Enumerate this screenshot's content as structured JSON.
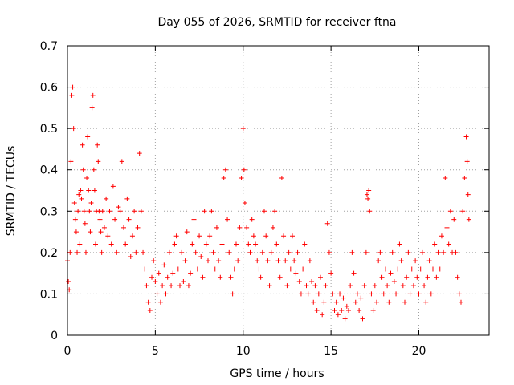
{
  "chart_data": {
    "type": "scatter",
    "title": "Day 055 of 2026, SRMTID for receiver ftna",
    "xlabel": "GPS time / hours",
    "ylabel": "SRMTID / TECUs",
    "xlim": [
      0,
      24
    ],
    "ylim": [
      0,
      0.7
    ],
    "x_ticks": [
      0,
      5,
      10,
      15,
      20
    ],
    "x_tick_labels": [
      "0",
      "5",
      "10",
      "15",
      "20"
    ],
    "y_ticks": [
      0,
      0.1,
      0.2,
      0.3,
      0.4,
      0.5,
      0.6,
      0.7
    ],
    "y_tick_labels": [
      "0",
      "0.1",
      "0.2",
      "0.3",
      "0.4",
      "0.5",
      "0.6",
      "0.7"
    ],
    "grid": true,
    "marker": "+",
    "series": [
      {
        "name": "SRMTID",
        "color": "#ff0000",
        "points": [
          [
            0.0,
            0.18
          ],
          [
            0.05,
            0.13
          ],
          [
            0.1,
            0.11
          ],
          [
            0.15,
            0.2
          ],
          [
            0.2,
            0.42
          ],
          [
            0.25,
            0.58
          ],
          [
            0.3,
            0.6
          ],
          [
            0.35,
            0.5
          ],
          [
            0.4,
            0.32
          ],
          [
            0.45,
            0.28
          ],
          [
            0.5,
            0.25
          ],
          [
            0.55,
            0.2
          ],
          [
            0.6,
            0.3
          ],
          [
            0.65,
            0.34
          ],
          [
            0.7,
            0.22
          ],
          [
            0.75,
            0.35
          ],
          [
            0.8,
            0.33
          ],
          [
            0.85,
            0.46
          ],
          [
            0.9,
            0.4
          ],
          [
            0.95,
            0.3
          ],
          [
            1.0,
            0.27
          ],
          [
            1.05,
            0.2
          ],
          [
            1.1,
            0.38
          ],
          [
            1.15,
            0.48
          ],
          [
            1.2,
            0.35
          ],
          [
            1.25,
            0.3
          ],
          [
            1.3,
            0.25
          ],
          [
            1.35,
            0.32
          ],
          [
            1.4,
            0.55
          ],
          [
            1.45,
            0.58
          ],
          [
            1.5,
            0.4
          ],
          [
            1.55,
            0.35
          ],
          [
            1.6,
            0.22
          ],
          [
            1.65,
            0.3
          ],
          [
            1.7,
            0.46
          ],
          [
            1.75,
            0.42
          ],
          [
            1.8,
            0.3
          ],
          [
            1.85,
            0.28
          ],
          [
            1.9,
            0.25
          ],
          [
            1.95,
            0.2
          ],
          [
            2.0,
            0.3
          ],
          [
            2.1,
            0.26
          ],
          [
            2.2,
            0.33
          ],
          [
            2.3,
            0.24
          ],
          [
            2.4,
            0.3
          ],
          [
            2.5,
            0.22
          ],
          [
            2.6,
            0.36
          ],
          [
            2.7,
            0.28
          ],
          [
            2.8,
            0.2
          ],
          [
            2.9,
            0.31
          ],
          [
            3.0,
            0.3
          ],
          [
            3.1,
            0.42
          ],
          [
            3.2,
            0.26
          ],
          [
            3.3,
            0.22
          ],
          [
            3.4,
            0.33
          ],
          [
            3.5,
            0.28
          ],
          [
            3.6,
            0.19
          ],
          [
            3.7,
            0.24
          ],
          [
            3.8,
            0.3
          ],
          [
            3.9,
            0.2
          ],
          [
            4.0,
            0.26
          ],
          [
            4.1,
            0.44
          ],
          [
            4.2,
            0.3
          ],
          [
            4.3,
            0.2
          ],
          [
            4.4,
            0.16
          ],
          [
            4.5,
            0.12
          ],
          [
            4.6,
            0.08
          ],
          [
            4.7,
            0.06
          ],
          [
            4.8,
            0.14
          ],
          [
            4.9,
            0.18
          ],
          [
            5.0,
            0.13
          ],
          [
            5.1,
            0.1
          ],
          [
            5.2,
            0.15
          ],
          [
            5.3,
            0.08
          ],
          [
            5.4,
            0.12
          ],
          [
            5.5,
            0.17
          ],
          [
            5.6,
            0.1
          ],
          [
            5.7,
            0.14
          ],
          [
            5.8,
            0.2
          ],
          [
            5.9,
            0.12
          ],
          [
            6.0,
            0.15
          ],
          [
            6.1,
            0.22
          ],
          [
            6.2,
            0.24
          ],
          [
            6.3,
            0.16
          ],
          [
            6.4,
            0.12
          ],
          [
            6.5,
            0.2
          ],
          [
            6.6,
            0.13
          ],
          [
            6.7,
            0.18
          ],
          [
            6.8,
            0.25
          ],
          [
            6.9,
            0.12
          ],
          [
            7.0,
            0.15
          ],
          [
            7.1,
            0.22
          ],
          [
            7.2,
            0.28
          ],
          [
            7.3,
            0.2
          ],
          [
            7.4,
            0.16
          ],
          [
            7.5,
            0.24
          ],
          [
            7.6,
            0.19
          ],
          [
            7.7,
            0.14
          ],
          [
            7.8,
            0.3
          ],
          [
            7.9,
            0.22
          ],
          [
            8.0,
            0.18
          ],
          [
            8.1,
            0.24
          ],
          [
            8.2,
            0.3
          ],
          [
            8.3,
            0.2
          ],
          [
            8.4,
            0.16
          ],
          [
            8.5,
            0.26
          ],
          [
            8.6,
            0.18
          ],
          [
            8.7,
            0.14
          ],
          [
            8.8,
            0.22
          ],
          [
            8.9,
            0.38
          ],
          [
            9.0,
            0.4
          ],
          [
            9.1,
            0.28
          ],
          [
            9.2,
            0.2
          ],
          [
            9.3,
            0.14
          ],
          [
            9.4,
            0.1
          ],
          [
            9.5,
            0.16
          ],
          [
            9.6,
            0.22
          ],
          [
            9.7,
            0.18
          ],
          [
            9.8,
            0.26
          ],
          [
            9.9,
            0.38
          ],
          [
            10.0,
            0.5
          ],
          [
            10.05,
            0.4
          ],
          [
            10.1,
            0.32
          ],
          [
            10.2,
            0.26
          ],
          [
            10.3,
            0.22
          ],
          [
            10.4,
            0.2
          ],
          [
            10.5,
            0.28
          ],
          [
            10.6,
            0.24
          ],
          [
            10.7,
            0.22
          ],
          [
            10.8,
            0.18
          ],
          [
            10.9,
            0.16
          ],
          [
            11.0,
            0.14
          ],
          [
            11.1,
            0.2
          ],
          [
            11.2,
            0.3
          ],
          [
            11.3,
            0.24
          ],
          [
            11.4,
            0.18
          ],
          [
            11.5,
            0.12
          ],
          [
            11.6,
            0.2
          ],
          [
            11.7,
            0.26
          ],
          [
            11.8,
            0.3
          ],
          [
            11.9,
            0.22
          ],
          [
            12.0,
            0.18
          ],
          [
            12.1,
            0.14
          ],
          [
            12.2,
            0.38
          ],
          [
            12.3,
            0.24
          ],
          [
            12.4,
            0.18
          ],
          [
            12.5,
            0.12
          ],
          [
            12.6,
            0.2
          ],
          [
            12.7,
            0.16
          ],
          [
            12.8,
            0.24
          ],
          [
            12.9,
            0.18
          ],
          [
            13.0,
            0.15
          ],
          [
            13.1,
            0.2
          ],
          [
            13.2,
            0.13
          ],
          [
            13.3,
            0.1
          ],
          [
            13.4,
            0.16
          ],
          [
            13.5,
            0.22
          ],
          [
            13.6,
            0.12
          ],
          [
            13.7,
            0.1
          ],
          [
            13.8,
            0.18
          ],
          [
            13.9,
            0.13
          ],
          [
            14.0,
            0.08
          ],
          [
            14.1,
            0.12
          ],
          [
            14.2,
            0.06
          ],
          [
            14.3,
            0.1
          ],
          [
            14.4,
            0.14
          ],
          [
            14.5,
            0.05
          ],
          [
            14.6,
            0.08
          ],
          [
            14.7,
            0.12
          ],
          [
            14.8,
            0.27
          ],
          [
            14.9,
            0.2
          ],
          [
            15.0,
            0.15
          ],
          [
            15.1,
            0.1
          ],
          [
            15.2,
            0.06
          ],
          [
            15.3,
            0.08
          ],
          [
            15.4,
            0.05
          ],
          [
            15.5,
            0.1
          ],
          [
            15.6,
            0.06
          ],
          [
            15.7,
            0.09
          ],
          [
            15.8,
            0.04
          ],
          [
            15.9,
            0.07
          ],
          [
            16.0,
            0.06
          ],
          [
            16.1,
            0.12
          ],
          [
            16.2,
            0.2
          ],
          [
            16.3,
            0.15
          ],
          [
            16.4,
            0.08
          ],
          [
            16.5,
            0.1
          ],
          [
            16.6,
            0.06
          ],
          [
            16.7,
            0.09
          ],
          [
            16.8,
            0.04
          ],
          [
            16.9,
            0.12
          ],
          [
            17.0,
            0.2
          ],
          [
            17.05,
            0.34
          ],
          [
            17.1,
            0.33
          ],
          [
            17.15,
            0.35
          ],
          [
            17.2,
            0.3
          ],
          [
            17.3,
            0.1
          ],
          [
            17.4,
            0.06
          ],
          [
            17.5,
            0.12
          ],
          [
            17.6,
            0.08
          ],
          [
            17.7,
            0.18
          ],
          [
            17.8,
            0.2
          ],
          [
            17.9,
            0.14
          ],
          [
            18.0,
            0.1
          ],
          [
            18.1,
            0.16
          ],
          [
            18.2,
            0.12
          ],
          [
            18.3,
            0.08
          ],
          [
            18.4,
            0.15
          ],
          [
            18.5,
            0.2
          ],
          [
            18.6,
            0.13
          ],
          [
            18.7,
            0.1
          ],
          [
            18.8,
            0.16
          ],
          [
            18.9,
            0.22
          ],
          [
            19.0,
            0.18
          ],
          [
            19.1,
            0.12
          ],
          [
            19.2,
            0.08
          ],
          [
            19.3,
            0.14
          ],
          [
            19.4,
            0.2
          ],
          [
            19.5,
            0.1
          ],
          [
            19.6,
            0.16
          ],
          [
            19.7,
            0.12
          ],
          [
            19.8,
            0.18
          ],
          [
            19.9,
            0.14
          ],
          [
            20.0,
            0.1
          ],
          [
            20.1,
            0.16
          ],
          [
            20.2,
            0.2
          ],
          [
            20.3,
            0.12
          ],
          [
            20.4,
            0.08
          ],
          [
            20.5,
            0.14
          ],
          [
            20.6,
            0.18
          ],
          [
            20.7,
            0.1
          ],
          [
            20.8,
            0.16
          ],
          [
            20.9,
            0.22
          ],
          [
            21.0,
            0.14
          ],
          [
            21.1,
            0.2
          ],
          [
            21.2,
            0.16
          ],
          [
            21.3,
            0.24
          ],
          [
            21.4,
            0.2
          ],
          [
            21.5,
            0.38
          ],
          [
            21.6,
            0.26
          ],
          [
            21.7,
            0.22
          ],
          [
            21.8,
            0.3
          ],
          [
            21.9,
            0.2
          ],
          [
            22.0,
            0.28
          ],
          [
            22.1,
            0.2
          ],
          [
            22.2,
            0.14
          ],
          [
            22.3,
            0.1
          ],
          [
            22.4,
            0.08
          ],
          [
            22.5,
            0.3
          ],
          [
            22.6,
            0.38
          ],
          [
            22.7,
            0.48
          ],
          [
            22.75,
            0.42
          ],
          [
            22.8,
            0.34
          ],
          [
            22.85,
            0.28
          ]
        ]
      }
    ]
  }
}
